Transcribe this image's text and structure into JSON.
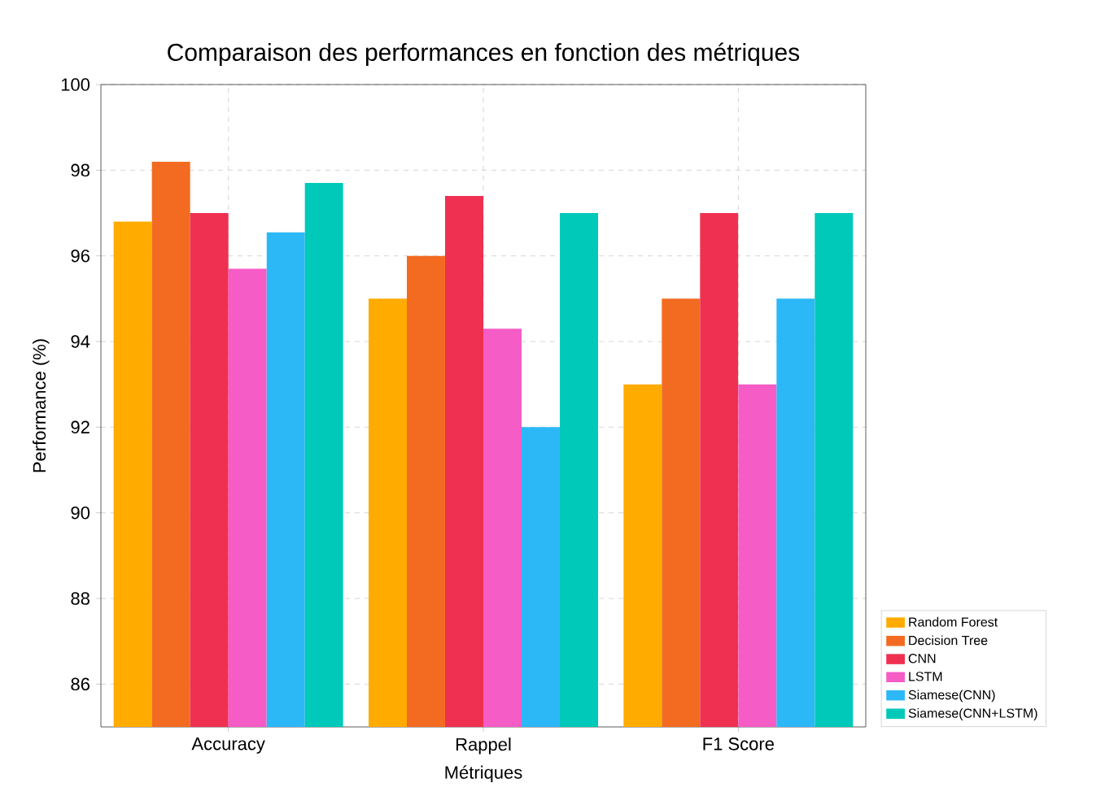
{
  "chart_data": {
    "type": "bar",
    "title": "Comparaison des performances en fonction des métriques",
    "xlabel": "Métriques",
    "ylabel": "Performance (%)",
    "categories": [
      "Accuracy",
      "Rappel",
      "F1 Score"
    ],
    "series": [
      {
        "name": "Random Forest",
        "color": "#ffab00",
        "values": [
          96.8,
          95,
          93
        ]
      },
      {
        "name": "Decision Tree",
        "color": "#f26b21",
        "values": [
          98.2,
          96,
          95
        ]
      },
      {
        "name": "CNN",
        "color": "#f03050",
        "values": [
          97,
          97.4,
          97
        ]
      },
      {
        "name": "LSTM",
        "color": "#f55cc6",
        "values": [
          95.7,
          94.3,
          93
        ]
      },
      {
        "name": "Siamese(CNN)",
        "color": "#2cb8f7",
        "values": [
          96.55,
          92,
          95
        ]
      },
      {
        "name": "Siamese(CNN+LSTM)",
        "color": "#00c9b9",
        "values": [
          97.7,
          97,
          97
        ]
      }
    ],
    "ylim": [
      85,
      100
    ],
    "yticks": [
      86,
      88,
      90,
      92,
      94,
      96,
      98,
      100
    ],
    "grid": true,
    "legend": "bottom right"
  }
}
